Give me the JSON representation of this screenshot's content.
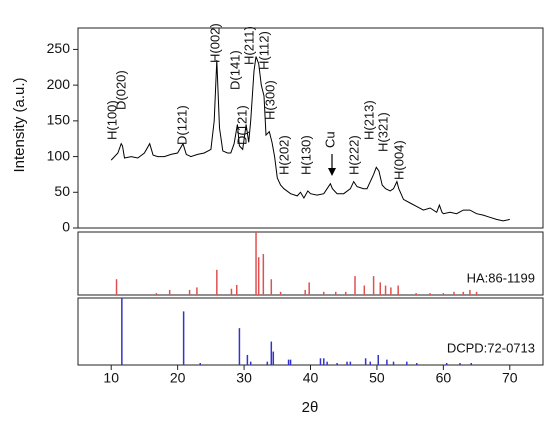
{
  "chart_data": [
    {
      "type": "line",
      "ylabel": "Intensity (a.u.)",
      "color": "#000000",
      "xlim": [
        5,
        75
      ],
      "ylim": [
        0,
        280
      ],
      "yticks": [
        0,
        50,
        100,
        150,
        200,
        250
      ],
      "x": [
        10,
        10.5,
        11,
        11.5,
        11.7,
        12,
        13,
        14,
        15,
        15.8,
        16.3,
        17,
        18,
        19,
        20,
        20.8,
        21.3,
        22,
        23,
        24,
        25,
        25.5,
        25.9,
        26.3,
        26.8,
        27.5,
        28,
        28.5,
        29,
        29.3,
        29.8,
        30.3,
        30.7,
        31,
        31.5,
        31.8,
        32.2,
        32.6,
        33,
        33.3,
        33.8,
        34.2,
        34.6,
        35,
        35.5,
        36,
        37,
        38,
        38.5,
        39,
        39.6,
        40,
        41,
        42,
        42.5,
        43,
        43.3,
        44,
        45,
        46,
        46.5,
        47,
        48,
        48.5,
        49,
        49.5,
        49.9,
        50.3,
        50.8,
        51.3,
        52,
        52.5,
        53,
        53.3,
        54,
        55,
        56,
        57,
        58,
        59,
        59.4,
        59.8,
        60,
        61,
        62,
        63,
        64,
        65,
        66,
        67,
        68,
        69,
        70
      ],
      "values": [
        95,
        100,
        105,
        118,
        115,
        98,
        100,
        98,
        105,
        118,
        102,
        100,
        100,
        103,
        105,
        118,
        103,
        100,
        103,
        105,
        110,
        150,
        235,
        140,
        108,
        105,
        105,
        118,
        145,
        115,
        110,
        145,
        120,
        150,
        220,
        240,
        230,
        200,
        185,
        130,
        135,
        120,
        100,
        70,
        60,
        55,
        48,
        45,
        50,
        42,
        52,
        48,
        46,
        48,
        55,
        62,
        55,
        48,
        48,
        55,
        65,
        58,
        55,
        55,
        65,
        75,
        85,
        80,
        60,
        55,
        52,
        55,
        65,
        55,
        40,
        35,
        30,
        25,
        28,
        22,
        32,
        22,
        20,
        22,
        20,
        25,
        25,
        20,
        18,
        15,
        12,
        10,
        12
      ],
      "annotations": [
        "H(100)",
        "D(020)",
        "D(121)",
        "H(002)",
        "D(141)",
        "D(121)",
        "H(211)",
        "H(112)",
        "H(300)",
        "H(202)",
        "H(130)",
        "Cu",
        "H(222)",
        "H(213)",
        "H(321)",
        "H(004)"
      ]
    },
    {
      "type": "bar",
      "name": "HA:86-1199",
      "color": "#e05050",
      "xlim": [
        5,
        75
      ],
      "ylim": [
        0,
        100
      ],
      "x": [
        10.8,
        16.8,
        18.8,
        21.8,
        22.9,
        25.9,
        28.1,
        28.9,
        31.8,
        32.2,
        32.9,
        34.1,
        35.5,
        39.2,
        39.8,
        42.0,
        43.8,
        45.3,
        46.7,
        48.1,
        49.5,
        50.5,
        51.3,
        52.1,
        53.2,
        55.9,
        58,
        60,
        61.6,
        63,
        64,
        65
      ],
      "values": [
        25,
        3,
        8,
        8,
        12,
        40,
        10,
        16,
        100,
        60,
        65,
        25,
        5,
        8,
        20,
        5,
        5,
        5,
        30,
        15,
        30,
        20,
        15,
        12,
        15,
        3,
        3,
        3,
        5,
        5,
        8,
        5
      ]
    },
    {
      "type": "bar",
      "name": "DCPD:72-0713",
      "color": "#3333cc",
      "xlim": [
        5,
        75
      ],
      "ylim": [
        0,
        100
      ],
      "xlabel": "2θ",
      "xticks": [
        10,
        20,
        30,
        40,
        50,
        60,
        70
      ],
      "x": [
        11.6,
        20.9,
        23.4,
        29.3,
        30.5,
        31.0,
        33.5,
        34.1,
        34.4,
        36.7,
        37.0,
        41.5,
        42,
        42.5,
        44,
        45.5,
        46,
        48.3,
        49,
        50.2,
        51.5,
        52.5,
        54.5,
        56,
        60.5,
        62.5,
        64.2
      ],
      "values": [
        100,
        80,
        3,
        55,
        15,
        5,
        5,
        35,
        20,
        8,
        8,
        10,
        10,
        5,
        3,
        5,
        5,
        10,
        5,
        15,
        8,
        5,
        5,
        3,
        3,
        3,
        3
      ]
    }
  ]
}
